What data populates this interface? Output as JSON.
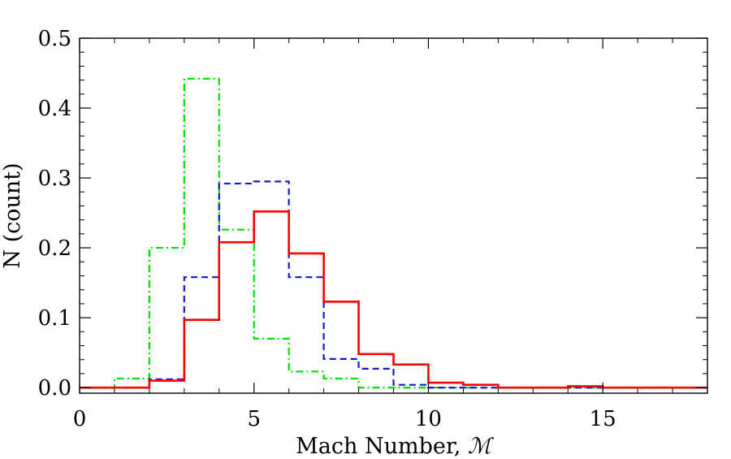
{
  "chart_data": {
    "type": "step",
    "xlabel": "Mach Number, ",
    "xlabel_symbol": "ℳ",
    "ylabel": "N (count)",
    "xlim": [
      0,
      18
    ],
    "ylim": [
      -0.008,
      0.5
    ],
    "grid": false,
    "x_ticks": [
      0,
      5,
      10,
      15
    ],
    "x_tick_labels": [
      "0",
      "5",
      "10",
      "15"
    ],
    "y_ticks": [
      0.0,
      0.1,
      0.2,
      0.3,
      0.4,
      0.5
    ],
    "y_tick_labels": [
      "0.0",
      "0.1",
      "0.2",
      "0.3",
      "0.4",
      "0.5"
    ],
    "bin_edges": [
      0,
      1,
      2,
      3,
      4,
      5,
      6,
      7,
      8,
      9,
      10,
      11,
      12,
      13,
      14,
      15,
      16,
      17,
      18
    ],
    "series": [
      {
        "color": "#ff0000",
        "style": "solid",
        "values": [
          0.0,
          0.0,
          0.01,
          0.097,
          0.208,
          0.252,
          0.192,
          0.123,
          0.048,
          0.033,
          0.007,
          0.004,
          0.0,
          0.0,
          0.002,
          0.0,
          0.0,
          0.0
        ]
      },
      {
        "color": "#1a1acc",
        "style": "dashed",
        "values": [
          0.0,
          0.0,
          0.012,
          0.158,
          0.292,
          0.295,
          0.158,
          0.041,
          0.027,
          0.004,
          0.0,
          0.0,
          0.0,
          0.0,
          0.0,
          0.0,
          0.0,
          0.0
        ]
      },
      {
        "color": "#00e000",
        "style": "dashdot",
        "values": [
          0.0,
          0.013,
          0.2,
          0.442,
          0.226,
          0.07,
          0.023,
          0.013,
          0.0,
          0.0,
          0.0,
          0.0,
          0.0,
          0.0,
          0.0,
          0.0,
          0.0,
          0.0
        ]
      }
    ]
  }
}
